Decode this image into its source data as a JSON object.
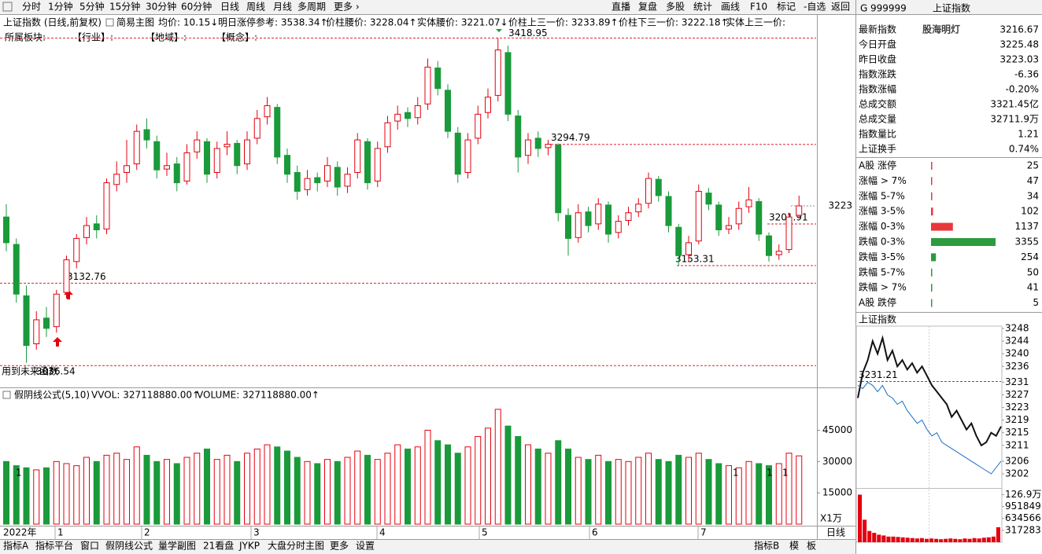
{
  "toolbar": {
    "periods": [
      "分时",
      "1分钟",
      "5分钟",
      "15分钟",
      "30分钟",
      "60分钟",
      "日线",
      "周线",
      "月线",
      "多周期",
      "更多 ›"
    ],
    "tools": [
      "直播",
      "复盘",
      "多股",
      "统计",
      "画线",
      "F10",
      "标记",
      "-自选",
      "返回"
    ]
  },
  "info": {
    "title": "上证指数 (日线,前复权)",
    "main": "简易主图",
    "items": [
      "均价: 10.15↓",
      "明日涨停参考: 3538.34↑",
      "价柱腰价: 3228.04↑",
      "实体腰价: 3221.07↓",
      "价柱上三一价: 3233.89↑",
      "价柱下三一价: 3222.18↑",
      "实体上三一价:"
    ],
    "sector_label": "所属板块:",
    "sectors": [
      "【行业】:",
      "【地域】:",
      "【概念】:"
    ]
  },
  "chart_data": [
    {
      "type": "candlestick",
      "up_color": "#e4000f",
      "down_color": "#1a9a3a",
      "ohlc": [
        [
          3210,
          3225,
          3170,
          3180
        ],
        [
          3178,
          3185,
          3110,
          3120
        ],
        [
          3118,
          3130,
          3040,
          3060
        ],
        [
          3062,
          3100,
          3055,
          3090
        ],
        [
          3092,
          3105,
          3070,
          3080
        ],
        [
          3082,
          3125,
          3075,
          3120
        ],
        [
          3122,
          3165,
          3115,
          3160
        ],
        [
          3158,
          3190,
          3150,
          3185
        ],
        [
          3186,
          3210,
          3178,
          3200
        ],
        [
          3202,
          3212,
          3185,
          3195
        ],
        [
          3196,
          3255,
          3190,
          3250
        ],
        [
          3248,
          3275,
          3240,
          3260
        ],
        [
          3262,
          3300,
          3250,
          3270
        ],
        [
          3272,
          3318,
          3265,
          3310
        ],
        [
          3312,
          3325,
          3290,
          3300
        ],
        [
          3298,
          3305,
          3255,
          3265
        ],
        [
          3266,
          3285,
          3258,
          3270
        ],
        [
          3272,
          3280,
          3240,
          3250
        ],
        [
          3252,
          3295,
          3248,
          3285
        ],
        [
          3286,
          3310,
          3278,
          3300
        ],
        [
          3298,
          3302,
          3250,
          3260
        ],
        [
          3262,
          3298,
          3255,
          3290
        ],
        [
          3292,
          3310,
          3282,
          3295
        ],
        [
          3296,
          3300,
          3260,
          3270
        ],
        [
          3272,
          3310,
          3265,
          3300
        ],
        [
          3302,
          3335,
          3295,
          3325
        ],
        [
          3327,
          3350,
          3318,
          3340
        ],
        [
          3338,
          3342,
          3272,
          3280
        ],
        [
          3282,
          3290,
          3250,
          3260
        ],
        [
          3262,
          3270,
          3230,
          3240
        ],
        [
          3242,
          3265,
          3235,
          3255
        ],
        [
          3256,
          3262,
          3240,
          3250
        ],
        [
          3252,
          3280,
          3245,
          3270
        ],
        [
          3268,
          3275,
          3235,
          3245
        ],
        [
          3246,
          3268,
          3238,
          3260
        ],
        [
          3262,
          3308,
          3255,
          3300
        ],
        [
          3298,
          3302,
          3242,
          3250
        ],
        [
          3252,
          3298,
          3245,
          3290
        ],
        [
          3292,
          3328,
          3285,
          3320
        ],
        [
          3322,
          3340,
          3312,
          3330
        ],
        [
          3332,
          3338,
          3315,
          3325
        ],
        [
          3326,
          3350,
          3318,
          3340
        ],
        [
          3342,
          3395,
          3335,
          3385
        ],
        [
          3384,
          3392,
          3352,
          3360
        ],
        [
          3358,
          3365,
          3302,
          3310
        ],
        [
          3308,
          3315,
          3250,
          3260
        ],
        [
          3262,
          3308,
          3255,
          3300
        ],
        [
          3302,
          3340,
          3295,
          3330
        ],
        [
          3332,
          3360,
          3325,
          3350
        ],
        [
          3352,
          3418.95,
          3345,
          3405
        ],
        [
          3402,
          3410,
          3322,
          3330
        ],
        [
          3328,
          3335,
          3262,
          3280
        ],
        [
          3282,
          3308,
          3272,
          3300
        ],
        [
          3302,
          3310,
          3280,
          3290
        ],
        [
          3291,
          3300,
          3282,
          3295
        ],
        [
          3294,
          3296,
          3205,
          3215
        ],
        [
          3212,
          3220,
          3165,
          3185
        ],
        [
          3186,
          3225,
          3180,
          3215
        ],
        [
          3216,
          3222,
          3192,
          3200
        ],
        [
          3202,
          3232,
          3195,
          3225
        ],
        [
          3224,
          3228,
          3180,
          3190
        ],
        [
          3192,
          3212,
          3185,
          3205
        ],
        [
          3206,
          3222,
          3200,
          3215
        ],
        [
          3216,
          3232,
          3210,
          3225
        ],
        [
          3226,
          3262,
          3220,
          3255
        ],
        [
          3254,
          3258,
          3228,
          3235
        ],
        [
          3234,
          3240,
          3192,
          3200
        ],
        [
          3198,
          3202,
          3153.31,
          3165
        ],
        [
          3166,
          3188,
          3158,
          3180
        ],
        [
          3182,
          3248,
          3178,
          3240
        ],
        [
          3238,
          3244,
          3218,
          3225
        ],
        [
          3224,
          3228,
          3188,
          3195
        ],
        [
          3196,
          3210,
          3190,
          3200
        ],
        [
          3202,
          3228,
          3195,
          3220
        ],
        [
          3222,
          3245,
          3215,
          3230
        ],
        [
          3228,
          3232,
          3182,
          3190
        ],
        [
          3188,
          3192,
          3158,
          3165
        ],
        [
          3166,
          3178,
          3160,
          3170
        ],
        [
          3172,
          3215,
          3168,
          3210
        ],
        [
          3212,
          3235,
          3208,
          3223
        ]
      ],
      "ylim": [
        3012,
        3445
      ],
      "yticks": [
        3223
      ],
      "levels": [
        3418.95,
        3294.79,
        3201.91,
        3153.31,
        3132.76,
        3036.54
      ],
      "note": "用到未来函数"
    },
    {
      "type": "bar",
      "title": "假阴线公式(5,10)",
      "indicators": [
        "VVOL: 327118880.00↑",
        "VOLUME: 327118880.00↑"
      ],
      "values": [
        30000,
        28000,
        27000,
        26000,
        27000,
        30000,
        29000,
        28000,
        32000,
        30000,
        33000,
        34000,
        31000,
        37000,
        33000,
        30000,
        31000,
        29000,
        32000,
        34000,
        36000,
        31000,
        33000,
        30000,
        34000,
        36000,
        38000,
        37000,
        35000,
        32000,
        30000,
        29000,
        31000,
        30000,
        32000,
        35000,
        33000,
        31000,
        34000,
        38000,
        36000,
        37000,
        45000,
        40000,
        38000,
        34000,
        37000,
        42000,
        46000,
        55000,
        47000,
        42000,
        38000,
        36000,
        34000,
        40000,
        36000,
        32000,
        31000,
        33000,
        30000,
        31000,
        30000,
        32000,
        34000,
        31000,
        30000,
        33000,
        32000,
        34000,
        31000,
        29000,
        28000,
        27000,
        30000,
        29000,
        28000,
        29000,
        34000,
        32711.9
      ],
      "ylim": [
        0,
        64000
      ],
      "yticks": [
        15000,
        30000,
        45000
      ],
      "unit": "X1万",
      "flags": [
        "1",
        "1",
        "1",
        "1"
      ]
    },
    {
      "type": "line",
      "title": "上证指数",
      "series": [
        {
          "color": "#111111",
          "values": [
            3226,
            3234,
            3238,
            3244,
            3240,
            3245,
            3238,
            3241,
            3236,
            3238,
            3235,
            3237,
            3234,
            3236,
            3233,
            3230,
            3228,
            3226,
            3224,
            3220,
            3222,
            3219,
            3216,
            3218,
            3214,
            3211,
            3212,
            3215,
            3214,
            3217
          ]
        },
        {
          "color": "#1a6fc4",
          "values": [
            3230,
            3229,
            3231,
            3230,
            3228,
            3230,
            3227,
            3226,
            3224,
            3225,
            3222,
            3220,
            3218,
            3219,
            3216,
            3214,
            3215,
            3212,
            3211,
            3210,
            3209,
            3208,
            3207,
            3206,
            3205,
            3204,
            3203,
            3202,
            3204,
            3206
          ]
        }
      ],
      "ylim": [
        3202,
        3248
      ],
      "yticks": [
        3248,
        3244,
        3240,
        3236,
        3231,
        3227,
        3223,
        3219,
        3215,
        3211,
        3206,
        3202
      ],
      "levels": [
        3231.21
      ]
    },
    {
      "type": "bar",
      "color": "#e4000f",
      "values": [
        1269000,
        600000,
        300000,
        250000,
        200000,
        180000,
        150000,
        150000,
        140000,
        130000,
        120000,
        110000,
        100000,
        110000,
        90000,
        100000,
        90000,
        80000,
        90000,
        100000,
        90000,
        80000,
        100000,
        90000,
        110000,
        100000,
        120000,
        130000,
        150000,
        400000
      ],
      "ylim": [
        0,
        1300000
      ],
      "yticks": [
        317283,
        634566,
        951849,
        {
          "value": 1269000,
          "label": "126.9万"
        }
      ]
    }
  ],
  "x_axis": {
    "labels": [
      "2022年",
      "1",
      "2",
      "3",
      "4",
      "5",
      "6",
      "7"
    ],
    "period": "日线"
  },
  "bottom_tabs": {
    "left": [
      "指标A",
      "指标平台",
      "窗口",
      "假阴线公式",
      "量学副图",
      "21看盘",
      "JYKP",
      "大盘分时主图",
      "更多",
      "设置"
    ],
    "right": [
      "指标B",
      "模",
      "板"
    ]
  },
  "quote": {
    "marker": "G",
    "code": "999999",
    "name": "上证指数",
    "watermark": "股海明灯",
    "rows": [
      {
        "label": "最新指数",
        "value": "3216.67",
        "color": "#e4000f"
      },
      {
        "label": "今日开盘",
        "value": "3225.48",
        "color": "#e4000f"
      },
      {
        "label": "昨日收盘",
        "value": "3223.03",
        "color": "#000000"
      },
      {
        "label": "指数涨跌",
        "value": "-6.36",
        "color": "#1a9a3a"
      },
      {
        "label": "指数涨幅",
        "value": "-0.20%",
        "color": "#1a9a3a"
      },
      {
        "label": "总成交额",
        "value": "3321.45亿",
        "color": "#000000"
      },
      {
        "label": "总成交量",
        "value": "32711.9万",
        "color": "#000000"
      },
      {
        "label": "指数量比",
        "value": "1.21",
        "color": "#e4000f"
      },
      {
        "label": "上证换手",
        "value": "0.74%",
        "color": "#000000"
      }
    ]
  },
  "breadth": {
    "up_color": "#e8373c",
    "down_color": "#2e9a3e",
    "rows": [
      {
        "label": "A股 涨停",
        "count": 25,
        "side": "up"
      },
      {
        "label": "涨幅 > 7%",
        "count": 47,
        "side": "up"
      },
      {
        "label": "涨幅 5-7%",
        "count": 34,
        "side": "up"
      },
      {
        "label": "涨幅 3-5%",
        "count": 102,
        "side": "up"
      },
      {
        "label": "涨幅 0-3%",
        "count": 1137,
        "side": "up"
      },
      {
        "label": "跌幅 0-3%",
        "count": 3355,
        "side": "down"
      },
      {
        "label": "跌幅 3-5%",
        "count": 254,
        "side": "down"
      },
      {
        "label": "跌幅 5-7%",
        "count": 50,
        "side": "down"
      },
      {
        "label": "跌幅 > 7%",
        "count": 41,
        "side": "down"
      },
      {
        "label": "A股 跌停",
        "count": 5,
        "side": "down"
      }
    ]
  }
}
